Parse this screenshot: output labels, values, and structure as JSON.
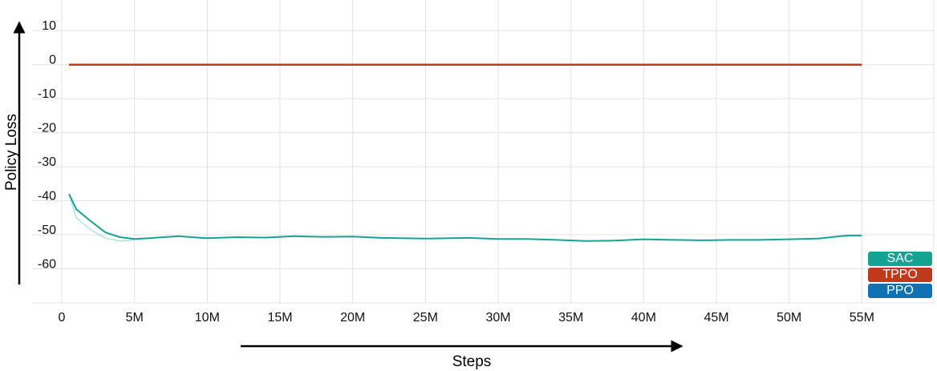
{
  "chart_data": {
    "type": "line",
    "xlabel": "Steps",
    "ylabel": "Policy Loss",
    "xlim": [
      0,
      60000000
    ],
    "ylim": [
      -70,
      19
    ],
    "x_ticks": [
      {
        "value": 0,
        "label": "0"
      },
      {
        "value": 5000000,
        "label": "5M"
      },
      {
        "value": 10000000,
        "label": "10M"
      },
      {
        "value": 15000000,
        "label": "15M"
      },
      {
        "value": 20000000,
        "label": "20M"
      },
      {
        "value": 25000000,
        "label": "25M"
      },
      {
        "value": 30000000,
        "label": "30M"
      },
      {
        "value": 35000000,
        "label": "35M"
      },
      {
        "value": 40000000,
        "label": "40M"
      },
      {
        "value": 45000000,
        "label": "45M"
      },
      {
        "value": 50000000,
        "label": "50M"
      },
      {
        "value": 55000000,
        "label": "55M"
      }
    ],
    "y_ticks": [
      {
        "value": 10,
        "label": "10"
      },
      {
        "value": 0,
        "label": "0"
      },
      {
        "value": -10,
        "label": "-10"
      },
      {
        "value": -20,
        "label": "-20"
      },
      {
        "value": -30,
        "label": "-30"
      },
      {
        "value": -40,
        "label": "-40"
      },
      {
        "value": -50,
        "label": "-50"
      },
      {
        "value": -60,
        "label": "-60"
      }
    ],
    "grid": true,
    "legend_position": "bottom-right",
    "series": [
      {
        "name": "SAC",
        "color": "#16a394",
        "x": [
          500000,
          1000000,
          2000000,
          3000000,
          4000000,
          5000000,
          6000000,
          8000000,
          10000000,
          12000000,
          14000000,
          16000000,
          18000000,
          20000000,
          22000000,
          25000000,
          28000000,
          30000000,
          32000000,
          34000000,
          36000000,
          38000000,
          40000000,
          42000000,
          44000000,
          46000000,
          48000000,
          50000000,
          52000000,
          54000000,
          55000000
        ],
        "y": [
          -38,
          -42.5,
          -46,
          -49.3,
          -50.7,
          -51.2,
          -51,
          -50.4,
          -51,
          -50.7,
          -50.8,
          -50.4,
          -50.6,
          -50.5,
          -50.9,
          -51.1,
          -50.9,
          -51.2,
          -51.2,
          -51.5,
          -51.8,
          -51.7,
          -51.3,
          -51.5,
          -51.6,
          -51.5,
          -51.5,
          -51.3,
          -51.1,
          -50.2,
          -50.2
        ],
        "raw": {
          "x": [
            500000,
            1000000,
            2000000,
            3000000,
            4000000,
            5000000
          ],
          "y": [
            -38,
            -45,
            -48.5,
            -51,
            -51.8,
            -51.5
          ]
        }
      },
      {
        "name": "TPPO",
        "color": "#c0391a",
        "x": [
          500000,
          55000000
        ],
        "y": [
          0,
          0
        ]
      },
      {
        "name": "PPO",
        "color": "#0e72b4",
        "x": [
          500000,
          55000000
        ],
        "y": [
          0,
          0
        ]
      }
    ]
  }
}
